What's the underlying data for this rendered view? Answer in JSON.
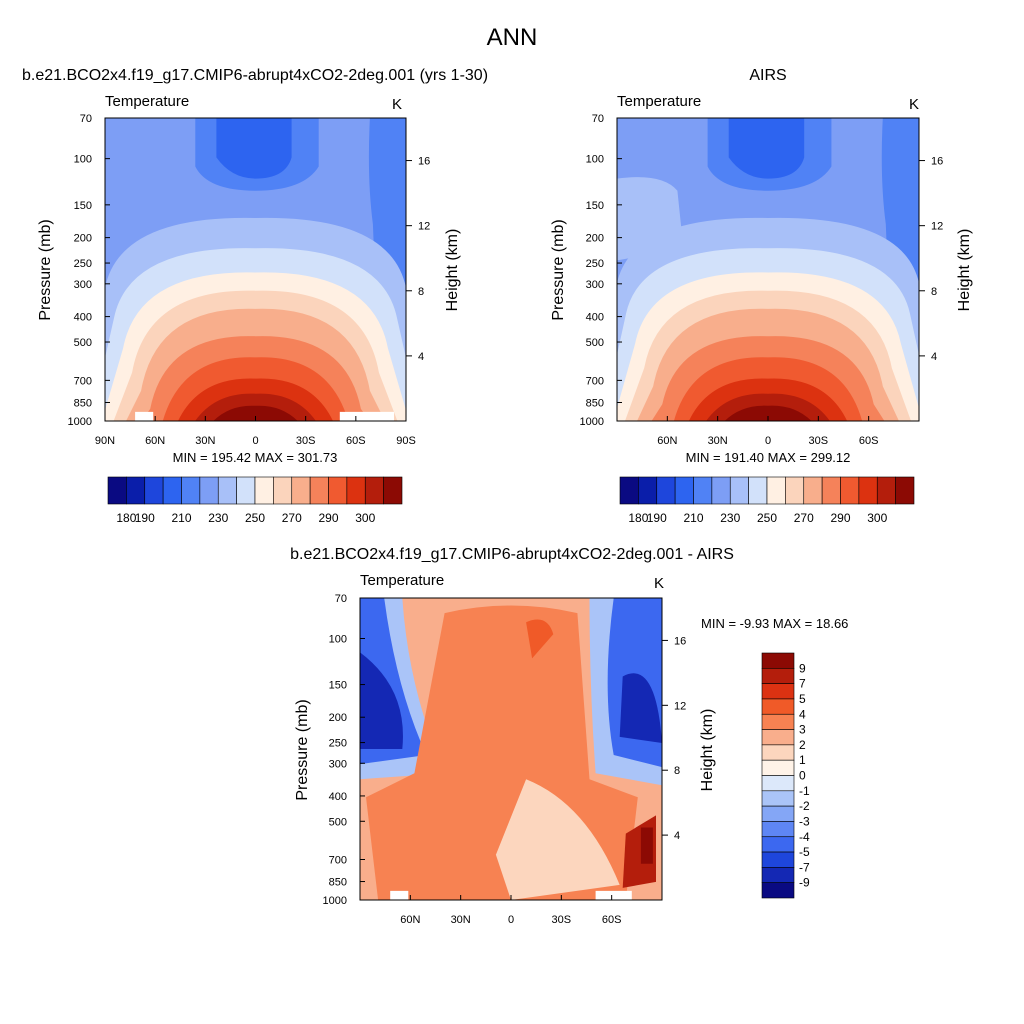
{
  "figure": {
    "title": "ANN"
  },
  "colors": {
    "abs": [
      "#0a0a82",
      "#0a1eaa",
      "#1e46dc",
      "#2d64f0",
      "#5082f5",
      "#7d9ef5",
      "#a8c0f8",
      "#d2e1fa",
      "#fff0e3",
      "#fbd4bc",
      "#f8ae8c",
      "#f5825a",
      "#f05a30",
      "#dc3210",
      "#b41e0c",
      "#8c0a04"
    ],
    "diff": [
      "#0a0a82",
      "#1428b4",
      "#1e46dc",
      "#3c68f0",
      "#5e86f4",
      "#84a6f6",
      "#aac4f8",
      "#dce8fa",
      "#fff3e8",
      "#fcd6be",
      "#f9ae8c",
      "#f78252",
      "#f05a28",
      "#dc3212",
      "#b41e0c",
      "#8c0a04"
    ]
  },
  "chart_data": [
    {
      "type": "contour",
      "panel": "model",
      "title": "b.e21.BCO2x4.f19_g17.CMIP6-abrupt4xCO2-2deg.001 (yrs 1-30)",
      "variable": "Temperature",
      "units": "K",
      "ylabel": "Pressure (mb)",
      "y2label": "Height (km)",
      "xlim": [
        -90,
        90
      ],
      "pressure_range": [
        70,
        1000
      ],
      "y_ticks": [
        "70",
        "100",
        "150",
        "200",
        "250",
        "300",
        "400",
        "500",
        "700",
        "850",
        "1000"
      ],
      "y2_ticks": [
        "16",
        "12",
        "8",
        "4"
      ],
      "x_ticks": [
        "90N",
        "60N",
        "30N",
        "0",
        "30S",
        "60S",
        "90S"
      ],
      "stats": "MIN = 195.42  MAX = 301.73",
      "min": 195.42,
      "max": 301.73,
      "levels": [
        180,
        190,
        200,
        210,
        220,
        230,
        240,
        250,
        260,
        270,
        280,
        290,
        295,
        300,
        305
      ],
      "colorbar_labels": [
        "180",
        "190",
        "210",
        "230",
        "250",
        "270",
        "290",
        "300"
      ]
    },
    {
      "type": "contour",
      "panel": "obs",
      "title": "AIRS",
      "variable": "Temperature",
      "units": "K",
      "ylabel": "Pressure (mb)",
      "y2label": "Height (km)",
      "xlim": [
        -90,
        90
      ],
      "pressure_range": [
        70,
        1000
      ],
      "y_ticks": [
        "70",
        "100",
        "150",
        "200",
        "250",
        "300",
        "400",
        "500",
        "700",
        "850",
        "1000"
      ],
      "y2_ticks": [
        "16",
        "12",
        "8",
        "4"
      ],
      "x_ticks": [
        "60N",
        "30N",
        "0",
        "30S",
        "60S"
      ],
      "stats": "MIN = 191.40  MAX = 299.12",
      "min": 191.4,
      "max": 299.12,
      "levels": [
        180,
        190,
        200,
        210,
        220,
        230,
        240,
        250,
        260,
        270,
        280,
        290,
        295,
        300,
        305
      ],
      "colorbar_labels": [
        "180",
        "190",
        "210",
        "230",
        "250",
        "270",
        "290",
        "300"
      ]
    },
    {
      "type": "contour",
      "panel": "difference",
      "title": "b.e21.BCO2x4.f19_g17.CMIP6-abrupt4xCO2-2deg.001 - AIRS",
      "variable": "Temperature",
      "units": "K",
      "ylabel": "Pressure (mb)",
      "y2label": "Height (km)",
      "xlim": [
        -90,
        90
      ],
      "pressure_range": [
        70,
        1000
      ],
      "y_ticks": [
        "70",
        "100",
        "150",
        "200",
        "250",
        "300",
        "400",
        "500",
        "700",
        "850",
        "1000"
      ],
      "y2_ticks": [
        "16",
        "12",
        "8",
        "4"
      ],
      "x_ticks": [
        "60N",
        "30N",
        "0",
        "30S",
        "60S"
      ],
      "stats": "MIN =  -9.93  MAX =  18.66",
      "min": -9.93,
      "max": 18.66,
      "levels": [
        -9,
        -7,
        -5,
        -4,
        -3,
        -2,
        -1,
        0,
        1,
        2,
        3,
        4,
        5,
        7,
        9
      ],
      "colorbar_labels": [
        "9",
        "7",
        "5",
        "4",
        "3",
        "2",
        "1",
        "0",
        "-1",
        "-2",
        "-3",
        "-4",
        "-5",
        "-7",
        "-9"
      ]
    }
  ]
}
